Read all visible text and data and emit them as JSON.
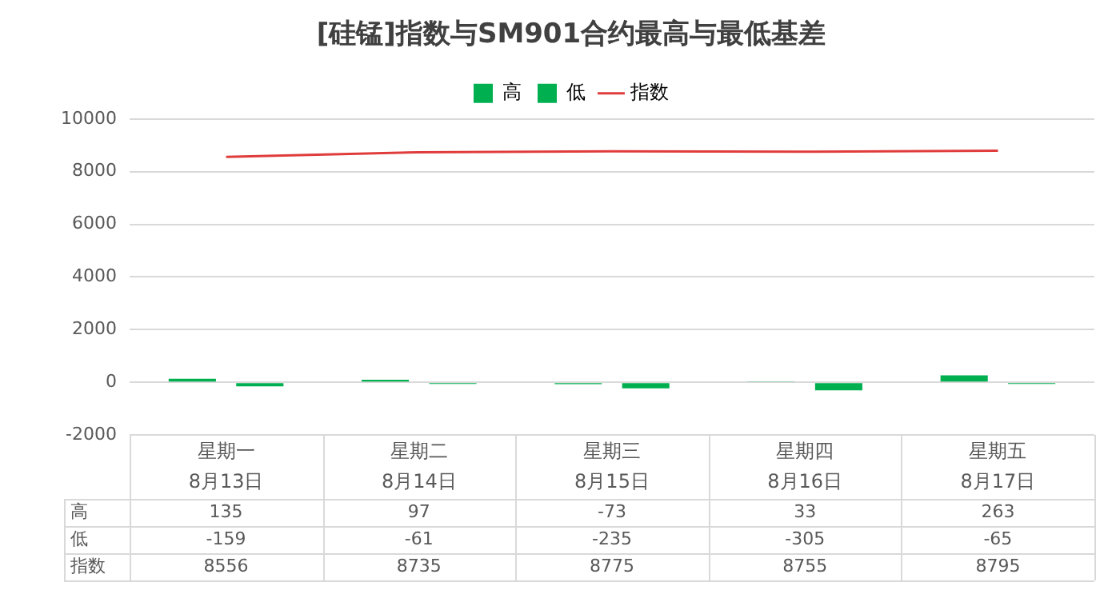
{
  "chart_data": {
    "type": "bar",
    "title": "[硅锰]指数与SM901合约最高与最低基差",
    "categories": [
      "星期一\n8月13日",
      "星期二\n8月14日",
      "星期三\n8月15日",
      "星期四\n8月16日",
      "星期五\n8月17日"
    ],
    "series": [
      {
        "name": "高",
        "color": "#00b050",
        "values": [
          135,
          97,
          -73,
          33,
          263
        ]
      },
      {
        "name": "低",
        "color": "#00b050",
        "values": [
          -159,
          -61,
          -235,
          -305,
          -65
        ]
      },
      {
        "name": "指数",
        "type": "line",
        "color": "#e03c3c",
        "values": [
          8556,
          8735,
          8775,
          8755,
          8795
        ]
      }
    ],
    "ylim": [
      -2000,
      10000
    ],
    "yticks": [
      -2000,
      0,
      2000,
      4000,
      6000,
      8000,
      10000
    ],
    "grid": "y",
    "legend": "top",
    "data_labels": true,
    "marker": "none"
  }
}
